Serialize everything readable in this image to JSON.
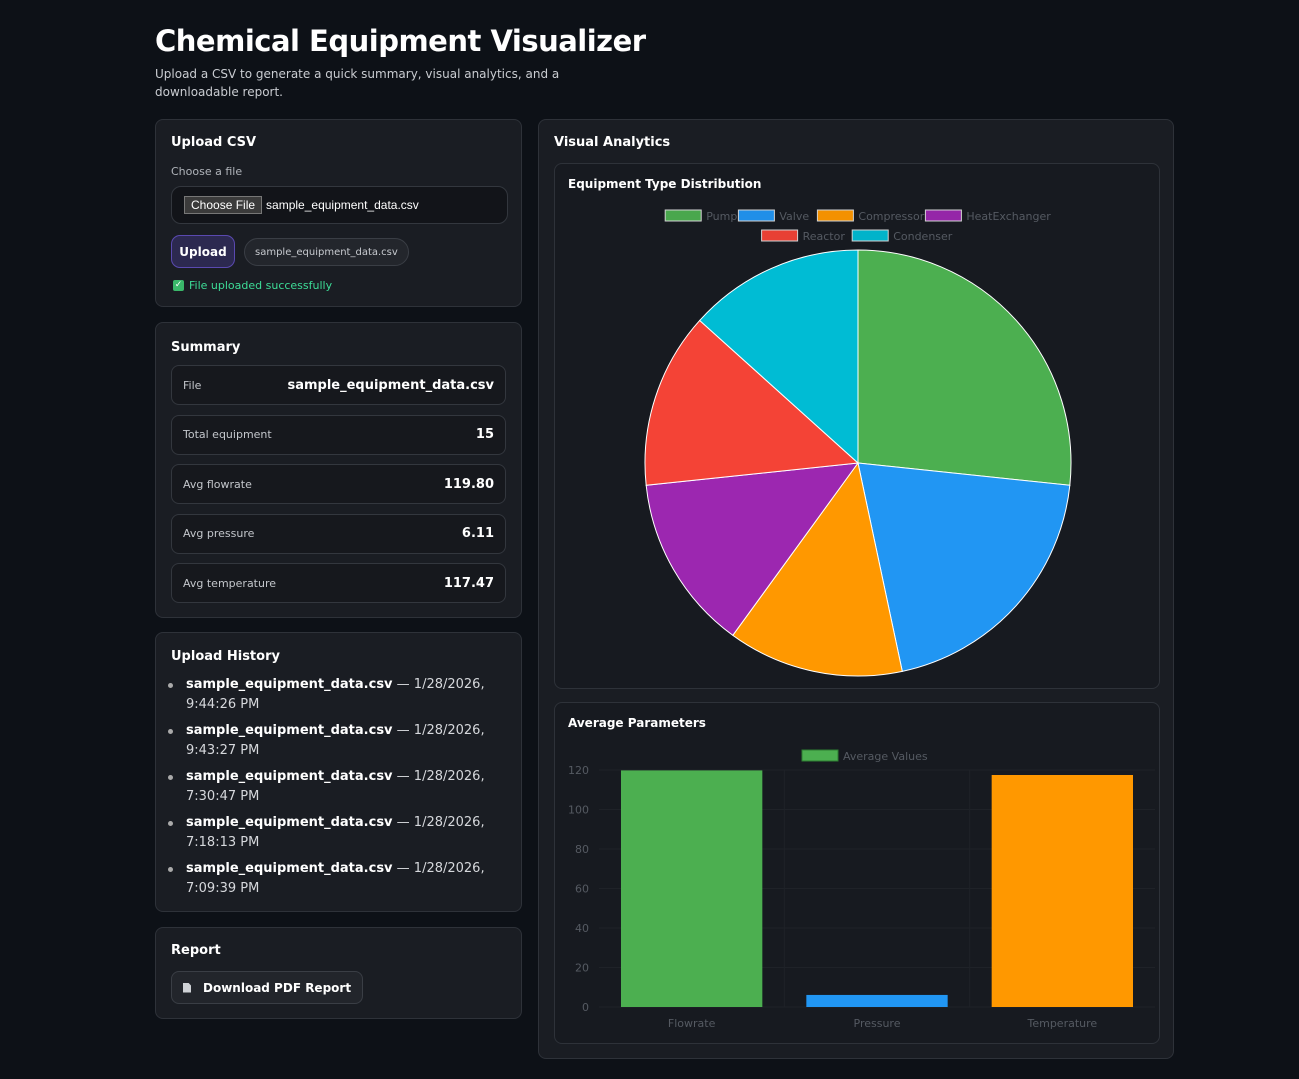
{
  "header": {
    "title": "Chemical Equipment Visualizer",
    "subtitle": "Upload a CSV to generate a quick summary, visual analytics, and a downloadable report."
  },
  "upload": {
    "title": "Upload CSV",
    "field_label": "Choose a file",
    "choose_button": "Choose File",
    "chosen_file": "sample_equipment_data.csv",
    "upload_button": "Upload",
    "file_chip": "sample_equipment_data.csv",
    "status": "File uploaded successfully",
    "status_color": "#3ddc97"
  },
  "summary": {
    "title": "Summary",
    "rows": [
      {
        "k": "File",
        "v": "sample_equipment_data.csv"
      },
      {
        "k": "Total equipment",
        "v": "15"
      },
      {
        "k": "Avg flowrate",
        "v": "119.80"
      },
      {
        "k": "Avg pressure",
        "v": "6.11"
      },
      {
        "k": "Avg temperature",
        "v": "117.47"
      }
    ]
  },
  "history": {
    "title": "Upload History",
    "items": [
      {
        "file": "sample_equipment_data.csv",
        "time": " — 1/28/2026, 9:44:26 PM"
      },
      {
        "file": "sample_equipment_data.csv",
        "time": " — 1/28/2026, 9:43:27 PM"
      },
      {
        "file": "sample_equipment_data.csv",
        "time": " — 1/28/2026, 7:30:47 PM"
      },
      {
        "file": "sample_equipment_data.csv",
        "time": " — 1/28/2026, 7:18:13 PM"
      },
      {
        "file": "sample_equipment_data.csv",
        "time": " — 1/28/2026, 7:09:39 PM"
      }
    ]
  },
  "report": {
    "title": "Report",
    "button": "Download PDF Report",
    "icon": "document-icon"
  },
  "analytics": {
    "title": "Visual Analytics"
  },
  "chart_data": [
    {
      "type": "pie",
      "title": "Equipment Type Distribution",
      "categories": [
        "Pump",
        "Valve",
        "Compressor",
        "HeatExchanger",
        "Reactor",
        "Condenser"
      ],
      "values": [
        4,
        3,
        2,
        2,
        2,
        2
      ],
      "colors": [
        "#4caf50",
        "#2196f3",
        "#ff9800",
        "#9c27b0",
        "#f44336",
        "#00bcd4"
      ],
      "legend": "top"
    },
    {
      "type": "bar",
      "title": "Average Parameters",
      "categories": [
        "Flowrate",
        "Pressure",
        "Temperature"
      ],
      "series": [
        {
          "name": "Average Values",
          "values": [
            119.8,
            6.11,
            117.47
          ]
        }
      ],
      "colors": [
        "#4caf50",
        "#2196f3",
        "#ff9800"
      ],
      "yticks": [
        0,
        20,
        40,
        60,
        80,
        100,
        120
      ],
      "ylim": [
        0,
        120
      ],
      "grid": true,
      "legend": "top"
    }
  ]
}
